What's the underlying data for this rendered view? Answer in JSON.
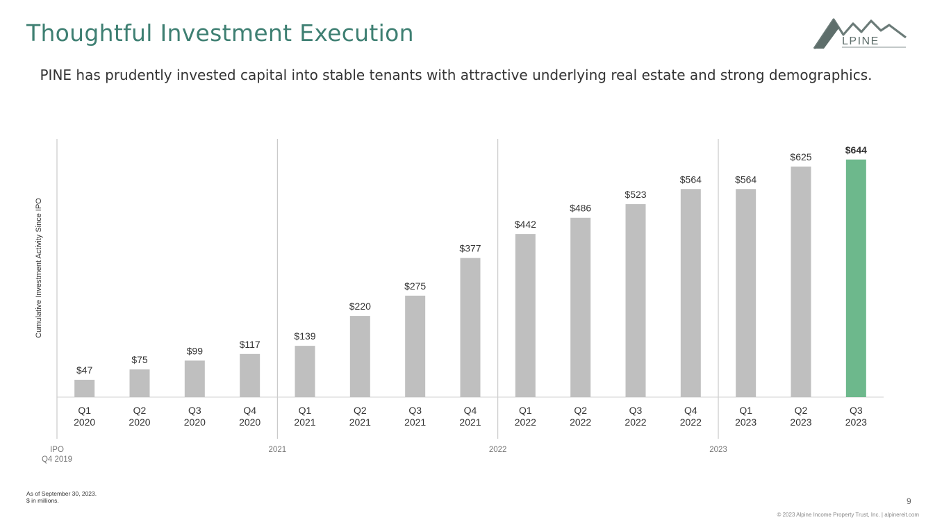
{
  "page": {
    "title": "Thoughtful Investment Execution",
    "subtitle": "PINE has prudently invested capital into stable tenants with attractive underlying real estate and strong demographics.",
    "logo_text": "LPINE",
    "footnote_line1": "As of September 30, 2023.",
    "footnote_line2": "$ in millions.",
    "page_number": "9",
    "copyright": "© 2023 Alpine Income Property Trust, Inc.  |  alpinereit.com"
  },
  "colors": {
    "title": "#3e7f72",
    "bar": "#bfbfbf",
    "highlight_bar": "#6db88c",
    "divider": "#bfbfbf"
  },
  "chart_data": {
    "type": "bar",
    "ylabel": "Cumulative Investment Activity Since IPO",
    "ylim": [
      0,
      700
    ],
    "grid": false,
    "categories": [
      "Q1\n2020",
      "Q2\n2020",
      "Q3\n2020",
      "Q4\n2020",
      "Q1\n2021",
      "Q2\n2021",
      "Q3\n2021",
      "Q4\n2021",
      "Q1\n2022",
      "Q2\n2022",
      "Q3\n2022",
      "Q4\n2022",
      "Q1\n2023",
      "Q2\n2023",
      "Q3\n2023"
    ],
    "values": [
      47,
      75,
      99,
      117,
      139,
      220,
      275,
      377,
      442,
      486,
      523,
      564,
      564,
      625,
      644
    ],
    "value_labels": [
      "$47",
      "$75",
      "$99",
      "$117",
      "$139",
      "$220",
      "$275",
      "$377",
      "$442",
      "$486",
      "$523",
      "$564",
      "$564",
      "$625",
      "$644"
    ],
    "highlight_index": 14,
    "year_markers": [
      {
        "label": "IPO\nQ4 2019",
        "before_index": 0
      },
      {
        "label": "2021",
        "before_index": 4
      },
      {
        "label": "2022",
        "before_index": 8
      },
      {
        "label": "2023",
        "before_index": 12
      }
    ]
  }
}
